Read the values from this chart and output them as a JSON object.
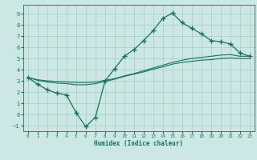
{
  "xlabel": "Humidex (Indice chaleur)",
  "bg_color": "#cce8e4",
  "line_color": "#1a6e62",
  "grid_color": "#a0cfc8",
  "xlim": [
    -0.5,
    23.5
  ],
  "ylim": [
    -1.5,
    9.8
  ],
  "xticks": [
    0,
    1,
    2,
    3,
    4,
    5,
    6,
    7,
    8,
    9,
    10,
    11,
    12,
    13,
    14,
    15,
    16,
    17,
    18,
    19,
    20,
    21,
    22,
    23
  ],
  "yticks": [
    -1,
    0,
    1,
    2,
    3,
    4,
    5,
    6,
    7,
    8,
    9
  ],
  "curve_x": [
    0,
    1,
    2,
    3,
    4,
    5,
    6,
    7,
    8,
    9,
    10,
    11,
    12,
    13,
    14,
    15,
    16,
    17,
    18,
    19,
    20,
    21,
    22,
    23
  ],
  "curve_y": [
    3.3,
    2.7,
    2.2,
    1.9,
    1.75,
    0.15,
    -1.1,
    -0.25,
    3.0,
    4.1,
    5.2,
    5.8,
    6.6,
    7.5,
    8.6,
    9.05,
    8.2,
    7.7,
    7.2,
    6.6,
    6.5,
    6.3,
    5.5,
    5.2
  ],
  "line2_x": [
    0,
    1,
    2,
    3,
    4,
    5,
    6,
    7,
    8,
    9,
    10,
    11,
    12,
    13,
    14,
    15,
    16,
    17,
    18,
    19,
    20,
    21,
    22,
    23
  ],
  "line2_y": [
    3.3,
    3.1,
    3.0,
    2.95,
    2.9,
    2.85,
    2.85,
    2.9,
    3.05,
    3.2,
    3.45,
    3.65,
    3.9,
    4.15,
    4.4,
    4.65,
    4.85,
    5.0,
    5.1,
    5.2,
    5.3,
    5.35,
    5.2,
    5.2
  ],
  "line3_x": [
    0,
    1,
    2,
    3,
    4,
    5,
    6,
    7,
    8,
    9,
    10,
    11,
    12,
    13,
    14,
    15,
    16,
    17,
    18,
    19,
    20,
    21,
    22,
    23
  ],
  "line3_y": [
    3.3,
    3.05,
    2.9,
    2.8,
    2.75,
    2.65,
    2.65,
    2.75,
    2.95,
    3.15,
    3.4,
    3.6,
    3.8,
    4.05,
    4.25,
    4.5,
    4.65,
    4.75,
    4.85,
    4.9,
    5.0,
    5.05,
    5.0,
    5.0
  ]
}
